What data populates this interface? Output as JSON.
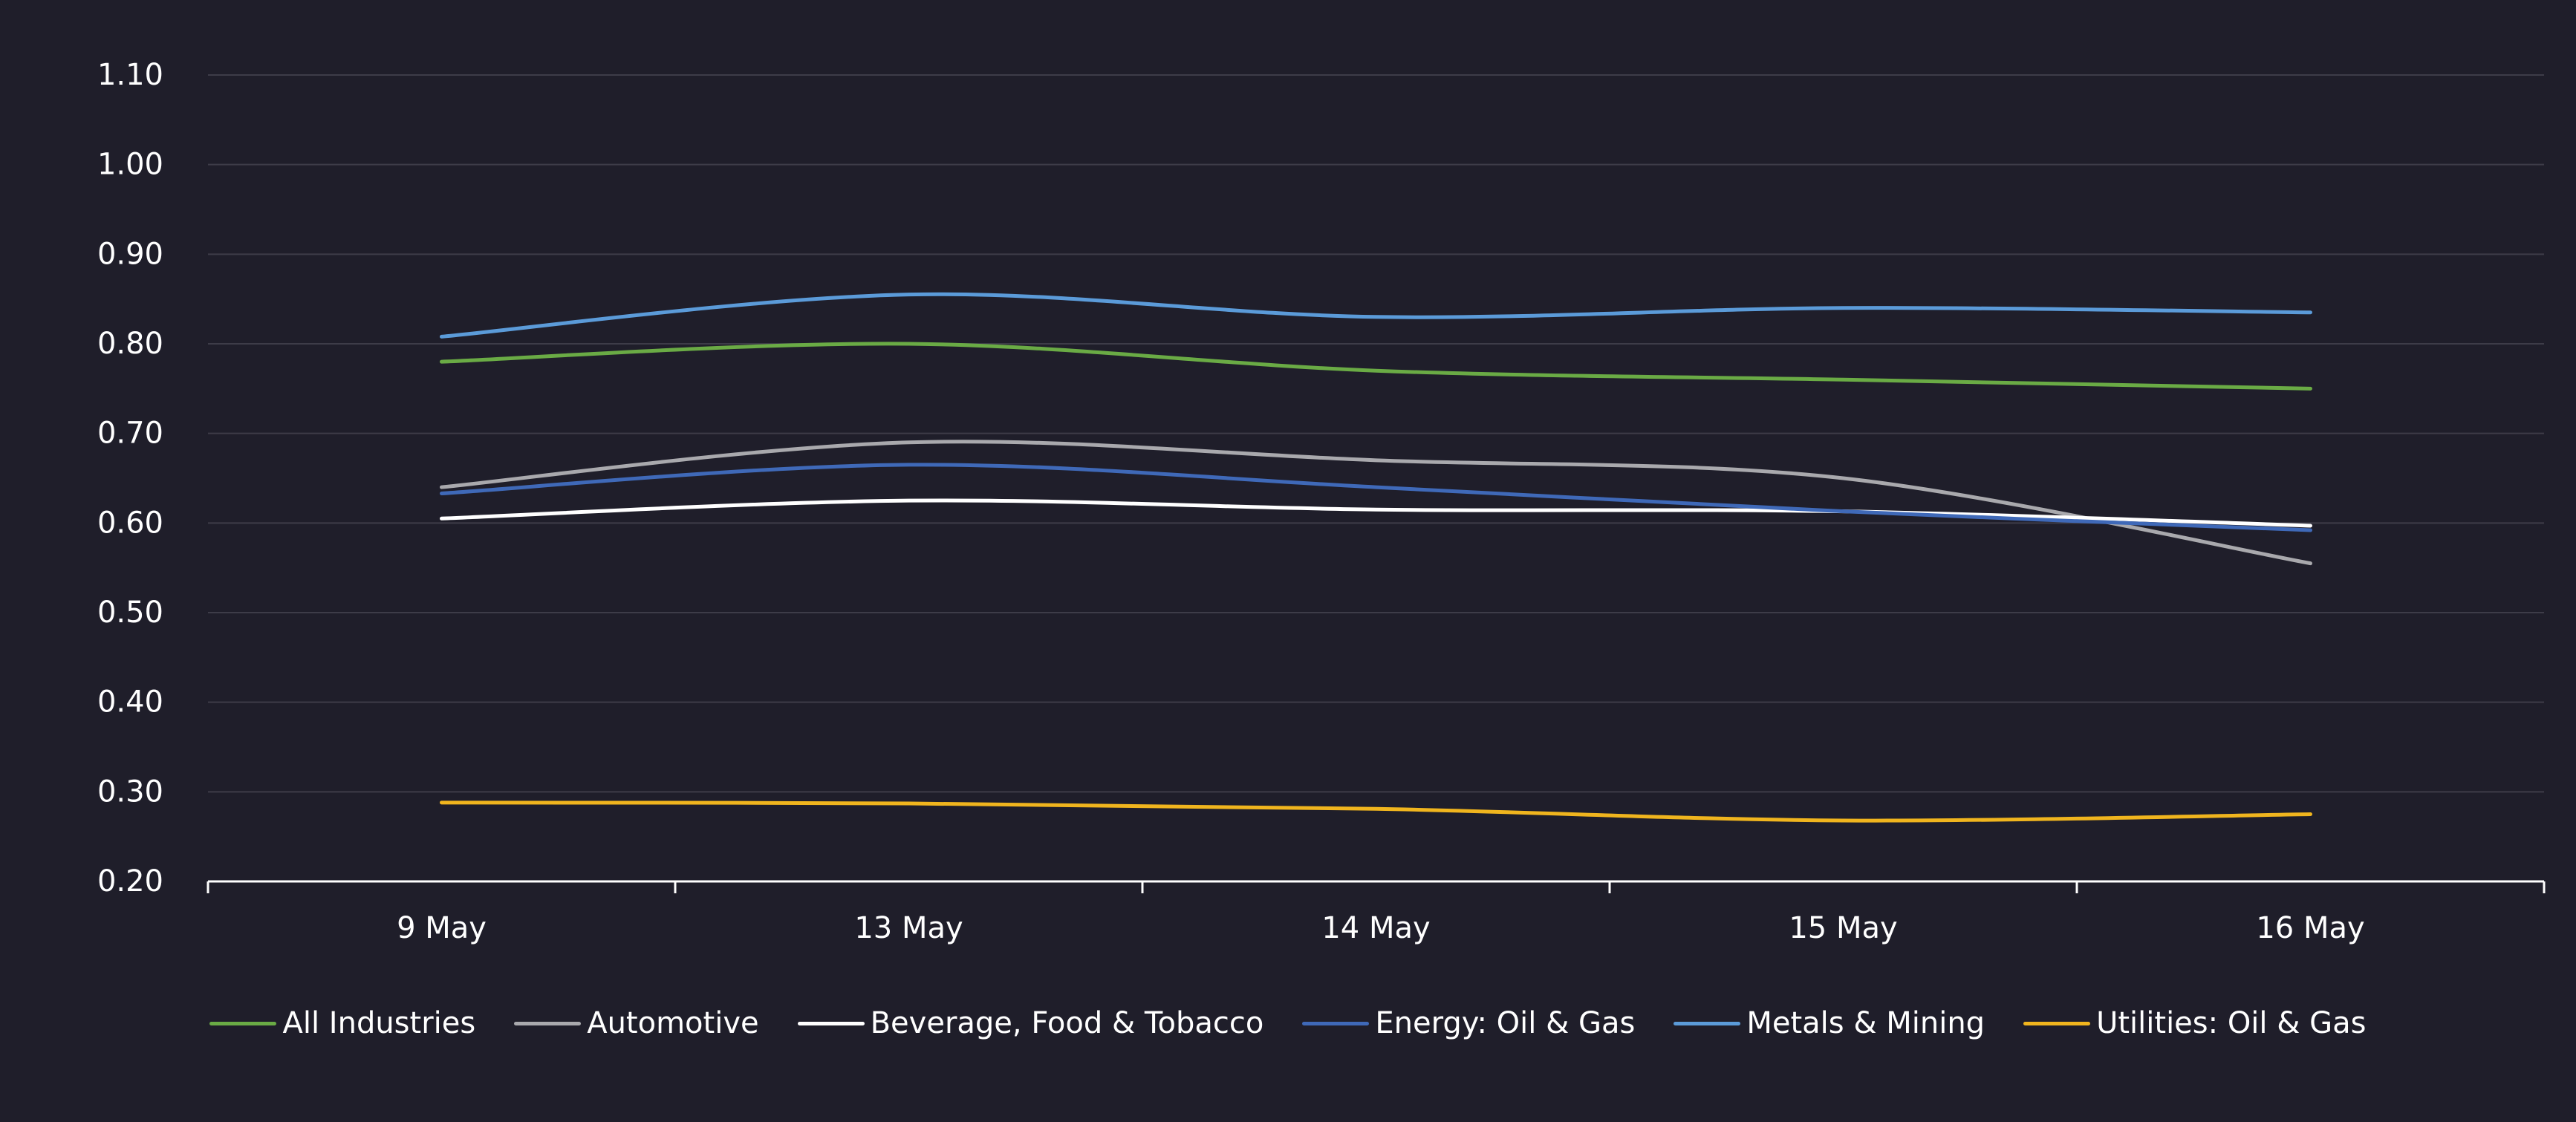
{
  "chart_data": {
    "type": "line",
    "title": "",
    "xlabel": "",
    "ylabel": "",
    "categories": [
      "9 May",
      "13 May",
      "14 May",
      "15 May",
      "16 May"
    ],
    "ylim": [
      0.2,
      1.1
    ],
    "yticks": [
      "0.20",
      "0.30",
      "0.40",
      "0.50",
      "0.60",
      "0.70",
      "0.80",
      "0.90",
      "1.00",
      "1.10"
    ],
    "grid": true,
    "legend_position": "bottom",
    "series": [
      {
        "name": "All Industries",
        "color": "#6aab45",
        "values": [
          0.78,
          0.8,
          0.77,
          0.76,
          0.75
        ]
      },
      {
        "name": "Automotive",
        "color": "#a9a9ad",
        "values": [
          0.64,
          0.69,
          0.67,
          0.65,
          0.555
        ]
      },
      {
        "name": "Beverage, Food & Tobacco",
        "color": "#ffffff",
        "values": [
          0.605,
          0.625,
          0.615,
          0.613,
          0.597
        ]
      },
      {
        "name": "Energy: Oil & Gas",
        "color": "#3f69b8",
        "values": [
          0.633,
          0.665,
          0.64,
          0.613,
          0.592
        ]
      },
      {
        "name": "Metals & Mining",
        "color": "#5b9bd9",
        "values": [
          0.808,
          0.855,
          0.83,
          0.84,
          0.835
        ]
      },
      {
        "name": "Utilities: Oil & Gas",
        "color": "#f0b51e",
        "values": [
          0.288,
          0.287,
          0.281,
          0.268,
          0.275
        ]
      }
    ]
  }
}
